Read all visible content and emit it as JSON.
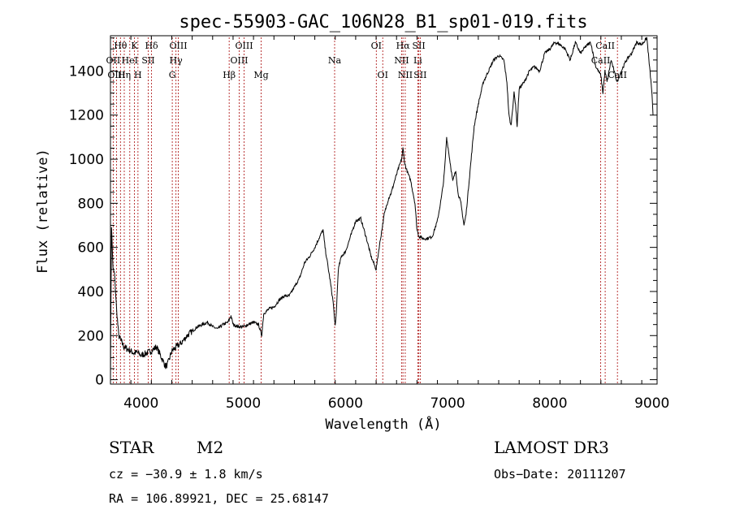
{
  "chart_data": {
    "type": "line",
    "title": "spec-55903-GAC_106N28_B1_sp01-019.fits",
    "xlabel": "Wavelength (Å)",
    "ylabel": "Flux (relative)",
    "xlim": [
      3700,
      9050
    ],
    "ylim": [
      -20,
      1560
    ],
    "xticks": [
      4000,
      5000,
      6000,
      7000,
      8000,
      9000
    ],
    "yticks": [
      0,
      200,
      400,
      600,
      800,
      1000,
      1200,
      1400
    ],
    "series": [
      {
        "name": "flux",
        "x": [
          3700,
          3710,
          3725,
          3740,
          3760,
          3780,
          3800,
          3830,
          3860,
          3900,
          3930,
          3960,
          4000,
          4050,
          4100,
          4150,
          4200,
          4240,
          4260,
          4300,
          4350,
          4400,
          4450,
          4500,
          4550,
          4600,
          4650,
          4700,
          4750,
          4800,
          4850,
          4880,
          4900,
          4950,
          5000,
          5050,
          5100,
          5150,
          5180,
          5200,
          5250,
          5300,
          5350,
          5400,
          5450,
          5500,
          5550,
          5600,
          5650,
          5700,
          5750,
          5780,
          5800,
          5850,
          5880,
          5900,
          5910,
          5930,
          5960,
          6000,
          6050,
          6100,
          6150,
          6200,
          6250,
          6300,
          6330,
          6380,
          6420,
          6450,
          6480,
          6520,
          6550,
          6563,
          6580,
          6600,
          6640,
          6680,
          6700,
          6720,
          6760,
          6800,
          6850,
          6900,
          6940,
          6960,
          6970,
          6990,
          7020,
          7050,
          7080,
          7100,
          7130,
          7160,
          7180,
          7200,
          7230,
          7260,
          7300,
          7350,
          7400,
          7450,
          7500,
          7550,
          7580,
          7600,
          7620,
          7650,
          7665,
          7680,
          7700,
          7750,
          7800,
          7850,
          7900,
          7950,
          8000,
          8050,
          8100,
          8150,
          8200,
          8250,
          8300,
          8350,
          8400,
          8450,
          8500,
          8520,
          8540,
          8560,
          8600,
          8640,
          8660,
          8700,
          8750,
          8800,
          8850,
          8900,
          8950,
          9000,
          9010
        ],
        "values": [
          0,
          700,
          500,
          480,
          320,
          200,
          180,
          150,
          140,
          130,
          120,
          125,
          110,
          120,
          130,
          150,
          100,
          60,
          70,
          130,
          150,
          170,
          200,
          220,
          240,
          250,
          260,
          240,
          230,
          250,
          260,
          290,
          250,
          240,
          240,
          250,
          260,
          250,
          200,
          300,
          320,
          330,
          360,
          380,
          380,
          420,
          460,
          530,
          560,
          600,
          650,
          680,
          600,
          450,
          350,
          240,
          300,
          500,
          560,
          580,
          650,
          720,
          730,
          650,
          560,
          500,
          600,
          750,
          820,
          850,
          900,
          960,
          1000,
          1050,
          980,
          950,
          900,
          800,
          680,
          650,
          640,
          640,
          650,
          720,
          830,
          900,
          950,
          1100,
          1000,
          900,
          950,
          850,
          800,
          700,
          750,
          850,
          1000,
          1150,
          1250,
          1350,
          1400,
          1450,
          1470,
          1450,
          1350,
          1200,
          1150,
          1300,
          1250,
          1150,
          1320,
          1350,
          1400,
          1420,
          1400,
          1480,
          1500,
          1530,
          1520,
          1500,
          1450,
          1530,
          1480,
          1510,
          1530,
          1420,
          1380,
          1300,
          1400,
          1350,
          1450,
          1380,
          1350,
          1400,
          1450,
          1480,
          1530,
          1520,
          1550,
          1300,
          1200
        ]
      }
    ],
    "spectral_lines": [
      {
        "label": "Hθ",
        "x": 3798,
        "row": 1
      },
      {
        "label": "OII",
        "x": 3727,
        "row": 2
      },
      {
        "label": "OIII",
        "x": 3759,
        "row": 3
      },
      {
        "label": "K",
        "x": 3934,
        "row": 1
      },
      {
        "label": "HeI",
        "x": 3889,
        "row": 2
      },
      {
        "label": "Hη",
        "x": 3835,
        "row": 3
      },
      {
        "label": "Hδ",
        "x": 4102,
        "row": 1
      },
      {
        "label": "SII",
        "x": 4070,
        "row": 2
      },
      {
        "label": "H",
        "x": 3969,
        "row": 3
      },
      {
        "label": "OIII",
        "x": 4364,
        "row": 1
      },
      {
        "label": "Hγ",
        "x": 4341,
        "row": 2
      },
      {
        "label": "G",
        "x": 4305,
        "row": 3
      },
      {
        "label": "OIII",
        "x": 5008,
        "row": 1
      },
      {
        "label": "OIII",
        "x": 4960,
        "row": 2
      },
      {
        "label": "Hβ",
        "x": 4862,
        "row": 3
      },
      {
        "label": "Mg",
        "x": 5175,
        "row": 3
      },
      {
        "label": "Na",
        "x": 5894,
        "row": 2
      },
      {
        "label": "OI",
        "x": 6302,
        "row": 1
      },
      {
        "label": "OI",
        "x": 6365,
        "row": 3
      },
      {
        "label": "Hα",
        "x": 6563,
        "row": 1
      },
      {
        "label": "NII",
        "x": 6549,
        "row": 2
      },
      {
        "label": "NII",
        "x": 6585,
        "row": 3
      },
      {
        "label": "SII",
        "x": 6718,
        "row": 1
      },
      {
        "label": "Li",
        "x": 6708,
        "row": 2
      },
      {
        "label": "SII",
        "x": 6732,
        "row": 3
      },
      {
        "label": "CaII",
        "x": 8542,
        "row": 1
      },
      {
        "label": "CaII",
        "x": 8498,
        "row": 2
      },
      {
        "label": "CaII",
        "x": 8662,
        "row": 3
      }
    ]
  },
  "info": {
    "object_class": "STAR",
    "subclass": "M2",
    "survey": "LAMOST DR3",
    "cz": "cz = −30.9 ± 1.8 km/s",
    "obs_date": "Obs−Date: 20111207",
    "coords": "RA = 106.89921, DEC =  25.68147"
  }
}
